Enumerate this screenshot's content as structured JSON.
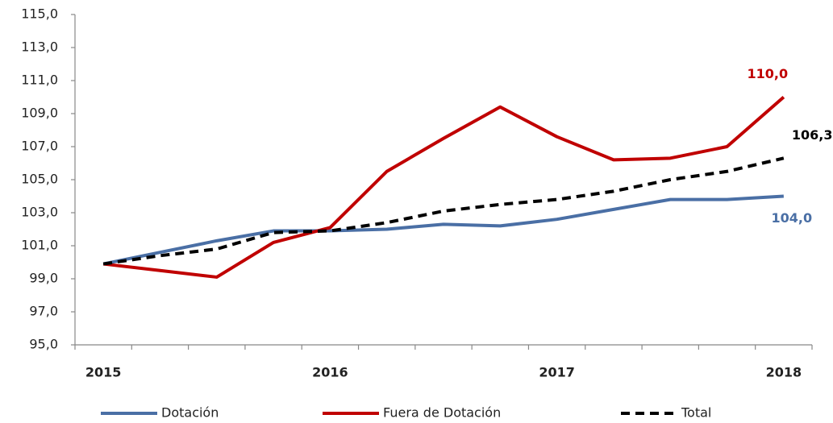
{
  "chart_data": {
    "type": "line",
    "categories": [
      "2015",
      null,
      null,
      null,
      "2016",
      null,
      null,
      null,
      "2017",
      null,
      null,
      null,
      "2018"
    ],
    "series": [
      {
        "name": "Dotación",
        "color": "#4a6fa5",
        "style": "solid",
        "values": [
          99.9,
          100.6,
          101.3,
          101.9,
          101.9,
          102.0,
          102.3,
          102.2,
          102.6,
          103.2,
          103.8,
          103.8,
          104.0
        ],
        "value_labels": [
          null,
          null,
          null,
          null,
          null,
          null,
          null,
          null,
          null,
          null,
          null,
          null,
          "104,0"
        ]
      },
      {
        "name": "Fuera de Dotación",
        "color": "#c00000",
        "style": "solid",
        "values": [
          99.9,
          99.5,
          99.1,
          101.2,
          102.1,
          105.5,
          107.5,
          109.4,
          107.6,
          106.2,
          106.3,
          107.0,
          110.0
        ],
        "value_labels": [
          null,
          null,
          null,
          null,
          null,
          null,
          null,
          null,
          null,
          null,
          null,
          null,
          "110,0"
        ]
      },
      {
        "name": "Total",
        "color": "#000000",
        "style": "dashed",
        "values": [
          99.9,
          100.4,
          100.8,
          101.8,
          101.9,
          102.4,
          103.1,
          103.5,
          103.8,
          104.3,
          105.0,
          105.5,
          106.3
        ],
        "value_labels": [
          null,
          null,
          null,
          null,
          null,
          null,
          null,
          null,
          null,
          null,
          null,
          null,
          "106,3"
        ]
      }
    ],
    "ylim": [
      95,
      115
    ],
    "yticks": [
      {
        "value": 95,
        "label": "95,0"
      },
      {
        "value": 97,
        "label": "97,0"
      },
      {
        "value": 99,
        "label": "99,0"
      },
      {
        "value": 101,
        "label": "101,0"
      },
      {
        "value": 103,
        "label": "103,0"
      },
      {
        "value": 105,
        "label": "105,0"
      },
      {
        "value": 107,
        "label": "107,0"
      },
      {
        "value": 109,
        "label": "109,0"
      },
      {
        "value": 111,
        "label": "111,0"
      },
      {
        "value": 113,
        "label": "113,0"
      },
      {
        "value": 115,
        "label": "115,0"
      }
    ],
    "grid": false,
    "legend": "bottom"
  }
}
